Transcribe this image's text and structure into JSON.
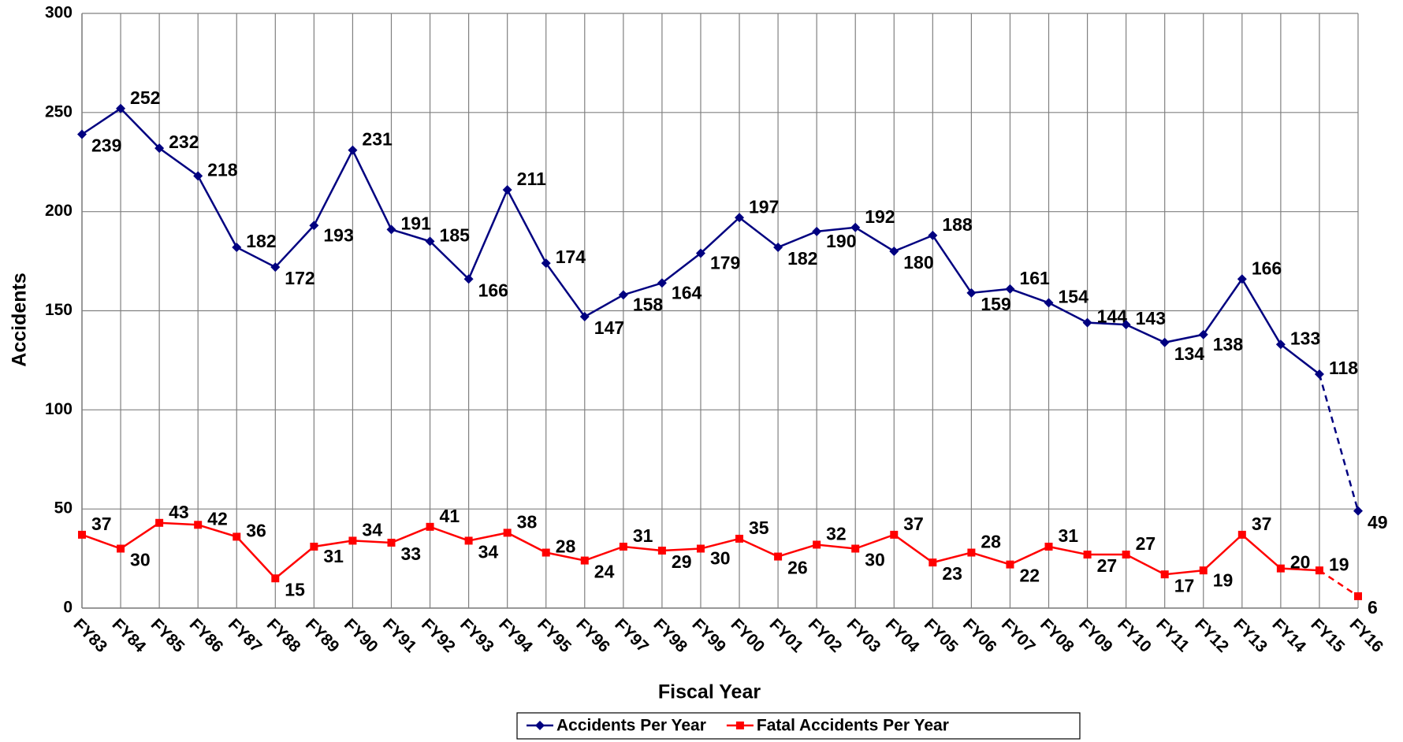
{
  "chart_data": {
    "type": "line",
    "x_label": "Fiscal Year",
    "y_label": "Accidents",
    "categories": [
      "FY83",
      "FY84",
      "FY85",
      "FY86",
      "FY87",
      "FY88",
      "FY89",
      "FY90",
      "FY91",
      "FY92",
      "FY93",
      "FY94",
      "FY95",
      "FY96",
      "FY97",
      "FY98",
      "FY99",
      "FY00",
      "FY01",
      "FY02",
      "FY03",
      "FY04",
      "FY05",
      "FY06",
      "FY07",
      "FY08",
      "FY09",
      "FY10",
      "FY11",
      "FY12",
      "FY13",
      "FY14",
      "FY15",
      "FY16"
    ],
    "series": [
      {
        "name": "Accidents Per Year",
        "color": "#000080",
        "marker": "diamond",
        "values": [
          239,
          252,
          232,
          218,
          182,
          172,
          193,
          231,
          191,
          185,
          166,
          211,
          174,
          147,
          158,
          164,
          179,
          197,
          182,
          190,
          192,
          180,
          188,
          159,
          161,
          154,
          144,
          143,
          134,
          138,
          166,
          133,
          118,
          49
        ]
      },
      {
        "name": "Fatal Accidents Per Year",
        "color": "#ff0000",
        "marker": "square",
        "values": [
          37,
          30,
          43,
          42,
          36,
          15,
          31,
          34,
          33,
          41,
          34,
          38,
          28,
          24,
          31,
          29,
          30,
          35,
          26,
          32,
          30,
          37,
          23,
          28,
          22,
          31,
          27,
          27,
          17,
          19,
          37,
          20,
          19,
          6
        ]
      }
    ],
    "ylim": [
      0,
      300
    ],
    "yticks": [
      0,
      50,
      100,
      150,
      200,
      250,
      300
    ],
    "grid": true,
    "last_segment_dashed": true,
    "legend": "bottom"
  }
}
